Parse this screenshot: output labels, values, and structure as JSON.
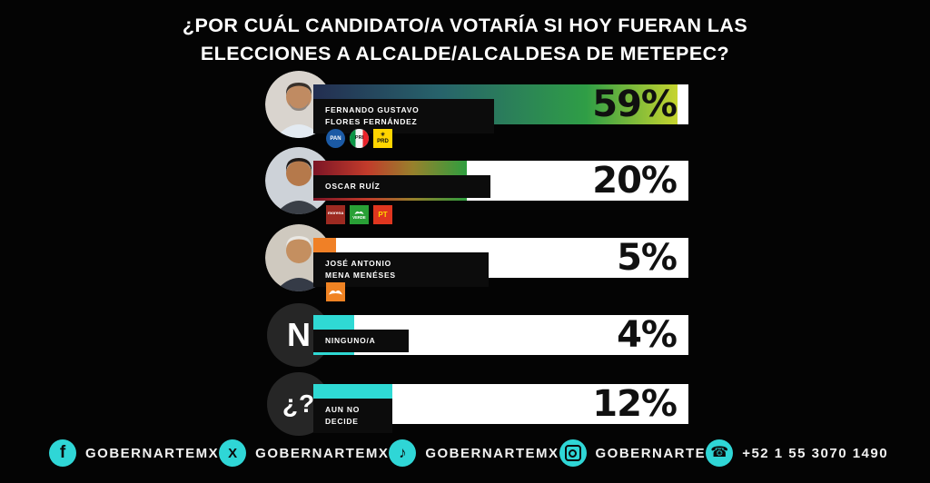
{
  "theme": {
    "accent": "#2fd6d6",
    "background": "#040404",
    "bar_background": "#ffffff",
    "text": "#ffffff",
    "percent_color": "#101010"
  },
  "title": {
    "lines": [
      "¿POR CUÁL CANDIDATO/A VOTARÍA SI HOY FUERAN LAS",
      "ELECCIONES A ALCALDE/ALCALDESA DE METEPEC?"
    ]
  },
  "chart_data": {
    "type": "bar",
    "title": "¿POR CUÁL CANDIDATO/A VOTARÍA SI HOY FUERAN LAS ELECCIONES A ALCALDE/ALCALDESA DE METEPEC?",
    "orientation": "horizontal",
    "unit": "%",
    "categories": [
      "FERNANDO GUSTAVO FLORES FERNÁNDEZ",
      "OSCAR RUÍZ",
      "JOSÉ ANTONIO MENA MENÉSES",
      "NINGUNO/A",
      "AUN NO DECIDE"
    ],
    "values": [
      59,
      20,
      5,
      4,
      12
    ],
    "data_labels": [
      "59%",
      "20%",
      "5%",
      "4%",
      "12%"
    ],
    "parties_per_category": [
      [
        "PAN",
        "PRI",
        "PRD"
      ],
      [
        "MORENA",
        "VERDE",
        "PT"
      ],
      [
        "MOVIMIENTO CIUDADANO"
      ],
      [],
      []
    ],
    "legend": "none",
    "grid": false
  },
  "rows": [
    {
      "name_lines": [
        "FERNANDO GUSTAVO",
        "FLORES FERNÁNDEZ"
      ],
      "value": 59,
      "value_label": "59%",
      "fill_percent": 97,
      "fill_colors": [
        "#232e51 0%",
        "#27636b 35%",
        "#2f9e46 75%",
        "#c6d42f 100%"
      ],
      "parties": [
        {
          "name": "pan",
          "label": "PAN",
          "bg": "#1b5aa5",
          "fg": "#ffffff"
        },
        {
          "name": "pri",
          "label": "PRI",
          "bg": "#f2f2f2",
          "fg": "#1a1a1a"
        },
        {
          "name": "prd",
          "label": "PRD",
          "bg": "#ffd500",
          "fg": "#111111"
        }
      ]
    },
    {
      "name_lines": [
        "OSCAR RUÍZ"
      ],
      "value": 20,
      "value_label": "20%",
      "fill_percent": 41,
      "fill_colors": [
        "#7c1526 0%",
        "#c23b2b 35%",
        "#97812c 65%",
        "#2f9e3f 100%"
      ],
      "parties": [
        {
          "name": "morena",
          "label": "morena",
          "bg": "#9d2a21",
          "fg": "#ffffff"
        },
        {
          "name": "verde",
          "label": "VERDE",
          "bg": "#29a036",
          "fg": "#ffffff"
        },
        {
          "name": "pt",
          "label": "PT",
          "bg": "#e0361f",
          "fg": "#ffd900"
        }
      ]
    },
    {
      "name_lines": [
        "JOSÉ ANTONIO",
        "MENA MENÉSES"
      ],
      "value": 5,
      "value_label": "5%",
      "fill_percent": 6,
      "fill_colors": [
        "#f08026"
      ],
      "parties": [
        {
          "name": "mc",
          "label": "",
          "bg": "#f08323",
          "fg": "#ffffff"
        }
      ]
    },
    {
      "name_lines": [
        "NINGUNO/A"
      ],
      "value": 4,
      "value_label": "4%",
      "icon_label": "N",
      "fill_percent": 11,
      "fill_colors": [
        "#2fd9d4"
      ],
      "parties": []
    },
    {
      "name_lines": [
        "AUN NO",
        "DECIDE"
      ],
      "value": 12,
      "value_label": "12%",
      "icon_label": "¿?",
      "fill_percent": 21,
      "fill_colors": [
        "#2fd9d4"
      ],
      "parties": []
    }
  ],
  "footer": {
    "items": [
      {
        "network": "facebook",
        "label": "GOBERNARTEMX"
      },
      {
        "network": "x",
        "label": "GOBERNARTEMX"
      },
      {
        "network": "tiktok",
        "label": "GOBERNARTEMX"
      },
      {
        "network": "instagram",
        "label": "GOBERNARTE"
      },
      {
        "network": "whatsapp",
        "label": "+52 1 55 3070 1490"
      }
    ]
  }
}
